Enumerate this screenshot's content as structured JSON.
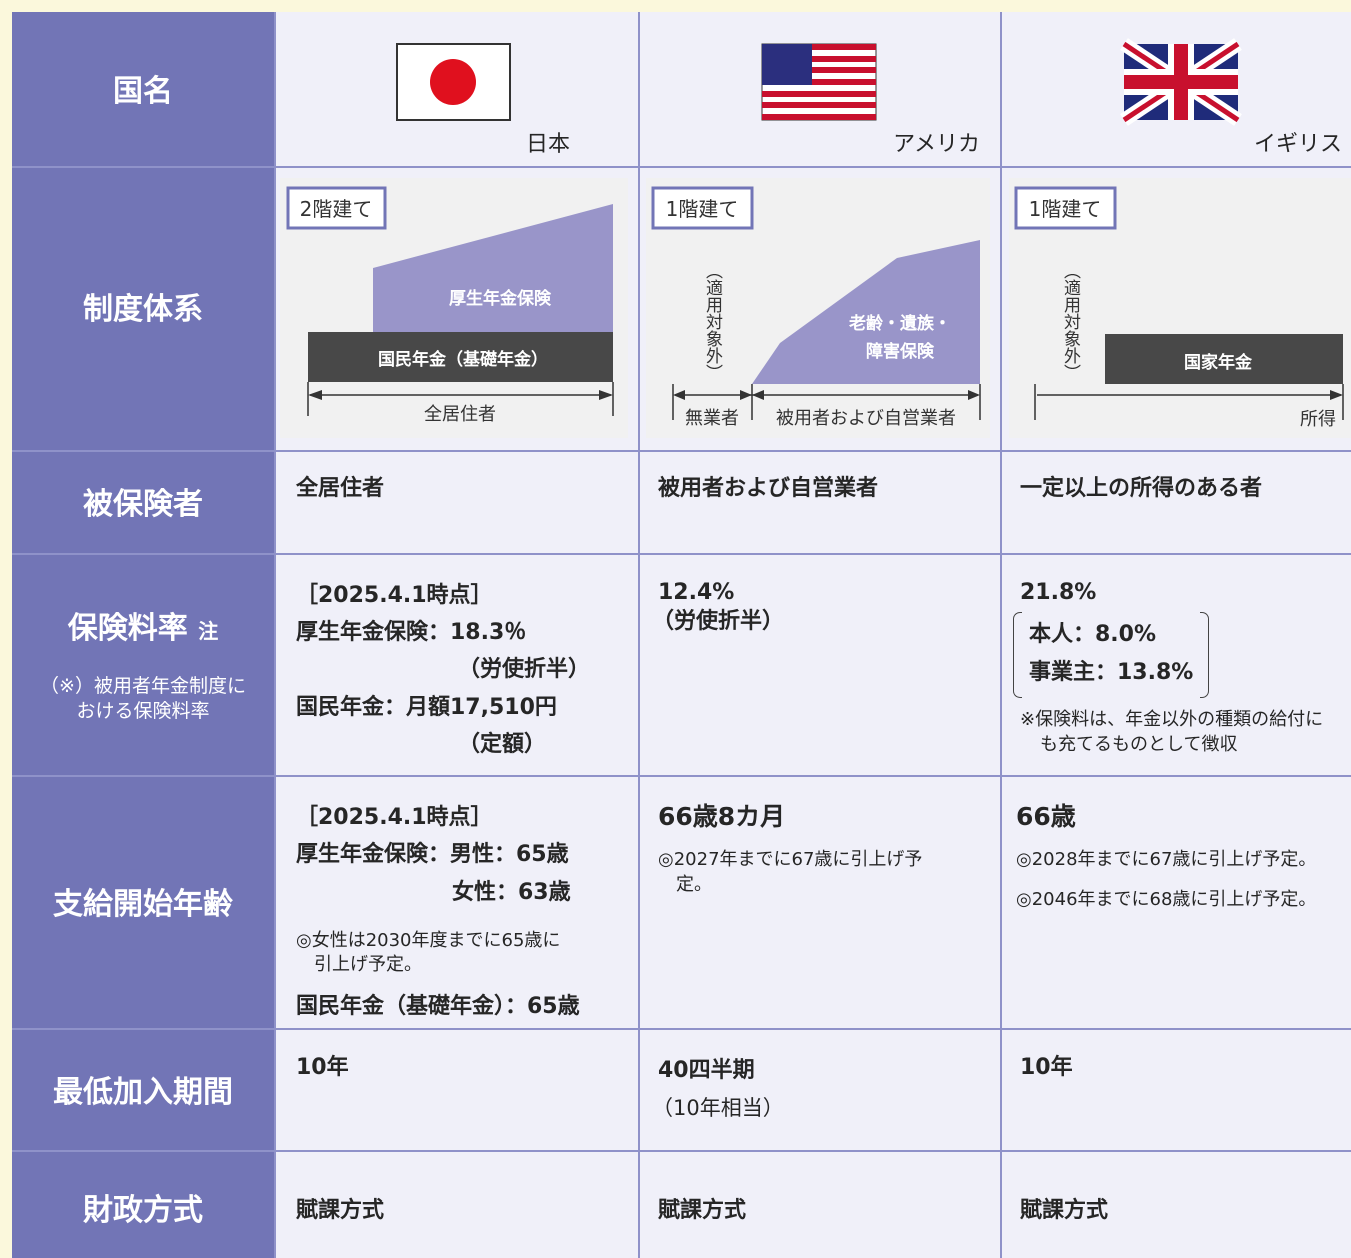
{
  "row_headers": [
    "国名",
    "制度体系",
    "被保険者",
    {
      "text": "保険料率",
      "note": "注",
      "sub": [
        "（※）被用者年金制度に",
        "おける保険料率"
      ]
    },
    "支給開始年齢",
    "最低加入期間",
    "財政方式"
  ],
  "countries": [
    {
      "name": "日本",
      "system": {
        "badge": "2階建て",
        "labels": [
          "厚生年金保険",
          "国民年金（基礎年金）",
          "全居住者"
        ]
      },
      "insured": "全居住者",
      "premium": [
        "［2025.4.1時点］",
        "厚生年金保険：18.3％",
        "（労使折半）",
        "国民年金：月額17,510円",
        "（定額）"
      ],
      "age": [
        "［2025.4.1時点］",
        "厚生年金保険：男性：65歳",
        "女性：63歳",
        "◎女性は2030年度までに65歳に",
        "引上げ予定。",
        "国民年金（基礎年金）：65歳"
      ],
      "minimum": [
        "10年"
      ],
      "finance": "賦課方式"
    },
    {
      "name": "アメリカ",
      "system": {
        "badge": "1階建て",
        "labels": [
          "（適用対象外）",
          "老齢・遺族・",
          "障害保険",
          "無業者",
          "被用者および自営業者"
        ]
      },
      "insured": "被用者および自営業者",
      "premium": [
        "12.4%",
        "（労使折半）"
      ],
      "age": [
        "66歳8カ月",
        "◎2027年までに67歳に引上げ予",
        "定。"
      ],
      "minimum": [
        "40四半期",
        "（10年相当）"
      ],
      "finance": "賦課方式"
    },
    {
      "name": "イギリス",
      "system": {
        "badge": "1階建て",
        "labels": [
          "（適用対象外）",
          "国家年金",
          "所得"
        ]
      },
      "insured": "一定以上の所得のある者",
      "premium": [
        "21.8%",
        "本人：8.0%",
        "事業主：13.8%",
        "※保険料は、年金以外の種類の給付に",
        "も充てるものとして徴収"
      ],
      "age": [
        "66歳",
        "◎2028年までに67歳に引上げ予定。",
        "◎2046年までに68歳に引上げ予定。"
      ],
      "minimum": [
        "10年"
      ],
      "finance": "賦課方式"
    }
  ]
}
